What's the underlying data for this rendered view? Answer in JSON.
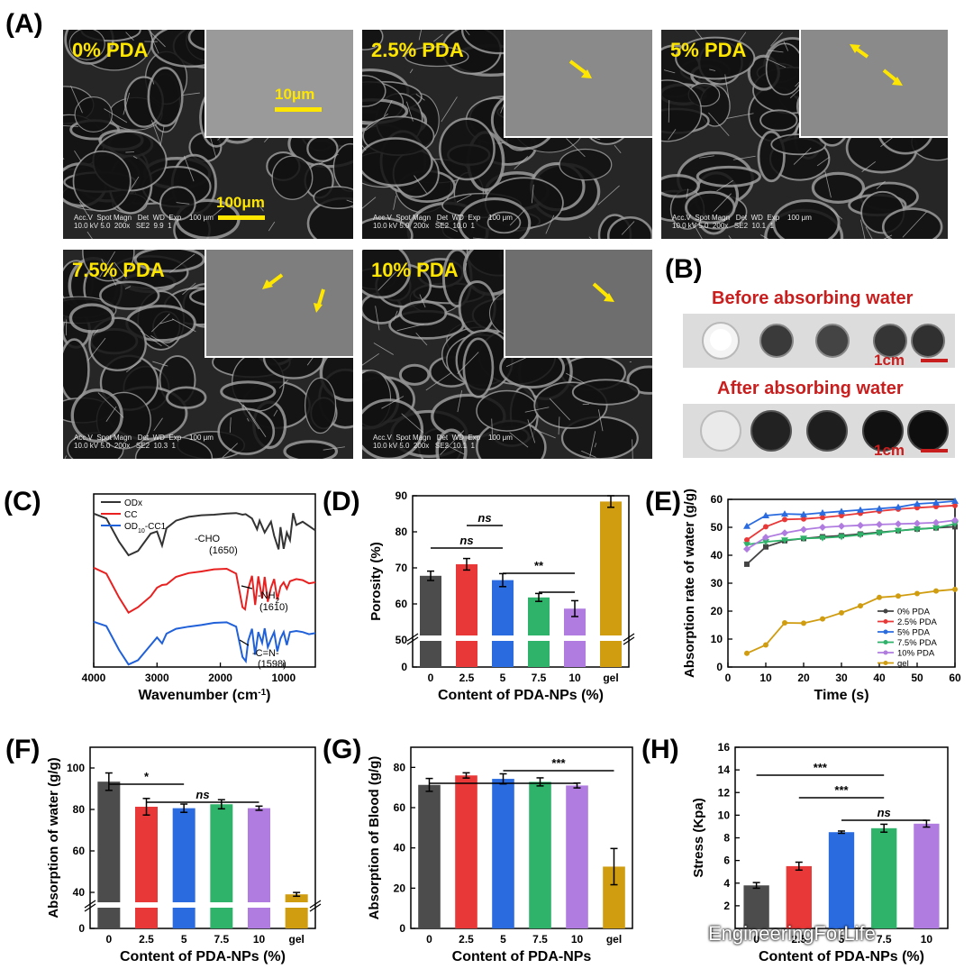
{
  "panel_labels": {
    "A": "(A)",
    "B": "(B)",
    "C": "(C)",
    "D": "(D)",
    "E": "(E)",
    "F": "(F)",
    "G": "(G)",
    "H": "(H)"
  },
  "sem_panels": [
    {
      "title": "0% PDA",
      "inset_scale": "10μm",
      "main_scale": "100μm",
      "meta": "Acc.V  Spot Magn   Det  WD  Exp    100 μm\n10.0 kV 5.0  200x   SE2  9.9  1",
      "inset_arrows": 0
    },
    {
      "title": "2.5% PDA",
      "meta": "Acc.V  Spot Magn   Det  WD  Exp    100 μm\n10.0 kV 5.0  200x   SE2  10.0  1",
      "inset_arrows": 1
    },
    {
      "title": "5% PDA",
      "meta": "Acc.V  Spot Magn   Det  WD  Exp    100 μm\n10.0 kV 5.0  200x   SE2  10.1  1",
      "inset_arrows": 2
    },
    {
      "title": "7.5% PDA",
      "meta": "Acc.V  Spot Magn   Det  WD  Exp    100 μm\n10.0 kV 5.0  200x   SE2  10.3  1",
      "inset_arrows": 2
    },
    {
      "title": "10% PDA",
      "meta": "Acc.V  Spot Magn   Det  WD  Exp    100 μm\n10.0 kV 5.0  200x   SE2  10.1  1",
      "inset_arrows": 1
    }
  ],
  "panel_b": {
    "before": "Before absorbing water",
    "after": "After absorbing water",
    "scale": "1cm",
    "colors": {
      "text": "#c81e1e"
    }
  },
  "watermark": "EngineeringForLife",
  "chart_data": [
    {
      "id": "C",
      "type": "line",
      "xlabel": "Wavenumber (cm",
      "xlabel_sup": "-1",
      "xlabel_end": ")",
      "xticks": [
        "4000",
        "3000",
        "2000",
        "1000"
      ],
      "xlim": [
        4000,
        500
      ],
      "legend": [
        {
          "name": "ODx",
          "color": "#333333"
        },
        {
          "name": "CC",
          "color": "#e82020"
        },
        {
          "name": "OD",
          "sub": "10",
          "name2": "-CC1",
          "color": "#2060d8"
        }
      ],
      "annotations": [
        {
          "text": "-CHO",
          "value": "(1650)"
        },
        {
          "text": "-NH",
          "sub": "2",
          "value": "(1610)"
        },
        {
          "text": "-C=N-",
          "value": "(1598)"
        }
      ],
      "series": [
        {
          "name": "ODx",
          "color": "#333333",
          "x": [
            4000,
            3800,
            3600,
            3450,
            3300,
            3100,
            3000,
            2920,
            2850,
            2700,
            2500,
            2300,
            2100,
            1900,
            1750,
            1650,
            1600,
            1500,
            1420,
            1380,
            1300,
            1200,
            1150,
            1080,
            1050,
            1000,
            950,
            900,
            850,
            800,
            700,
            600,
            500
          ],
          "y": [
            0.3,
            1.2,
            5.5,
            8.0,
            7.2,
            4.0,
            3.6,
            6.2,
            3.0,
            1.6,
            0.9,
            0.6,
            0.5,
            0.3,
            0.2,
            0.5,
            0.4,
            1.2,
            3.2,
            1.6,
            3.8,
            1.8,
            4.4,
            6.9,
            2.8,
            6.8,
            3.8,
            5.2,
            0.2,
            2.4,
            1.8,
            2.6,
            3.4
          ]
        },
        {
          "name": "CC",
          "color": "#e82020",
          "x": [
            4000,
            3800,
            3600,
            3450,
            3300,
            3100,
            3000,
            2920,
            2850,
            2700,
            2500,
            2300,
            2100,
            1900,
            1750,
            1650,
            1610,
            1560,
            1500,
            1450,
            1400,
            1340,
            1300,
            1250,
            1200,
            1150,
            1100,
            1050,
            1000,
            950,
            900,
            800,
            700,
            600,
            500
          ],
          "y": [
            0.3,
            1.4,
            5.8,
            8.6,
            7.6,
            5.6,
            4.0,
            3.5,
            3.4,
            2.0,
            1.3,
            1.0,
            0.6,
            0.5,
            1.4,
            7.6,
            8.0,
            4.2,
            1.8,
            7.2,
            1.9,
            6.0,
            2.0,
            6.6,
            4.0,
            2.4,
            6.2,
            3.8,
            3.0,
            4.2,
            2.8,
            2.4,
            2.6,
            3.2,
            3.0
          ]
        },
        {
          "name": "OD10-CC1",
          "color": "#2060d8",
          "x": [
            4000,
            3800,
            3600,
            3450,
            3300,
            3100,
            3000,
            2920,
            2850,
            2700,
            2500,
            2300,
            2100,
            1900,
            1750,
            1650,
            1598,
            1560,
            1500,
            1450,
            1400,
            1340,
            1300,
            1250,
            1200,
            1150,
            1100,
            1050,
            1000,
            950,
            900,
            800,
            700,
            600,
            500
          ],
          "y": [
            0.3,
            1.1,
            5.5,
            8.2,
            7.4,
            4.6,
            3.2,
            4.3,
            2.5,
            1.6,
            1.2,
            0.9,
            0.5,
            0.4,
            1.2,
            6.8,
            7.6,
            3.8,
            1.6,
            6.4,
            2.2,
            4.2,
            1.5,
            5.0,
            3.5,
            2.2,
            5.8,
            3.4,
            2.2,
            4.6,
            2.2,
            2.0,
            2.2,
            2.6,
            2.4
          ]
        }
      ]
    },
    {
      "id": "D",
      "type": "bar",
      "ylabel": "Porosity (%)",
      "xlabel": "Content of PDA-NPs (%)",
      "categories": [
        "0",
        "2.5",
        "5",
        "7.5",
        "10",
        "gel"
      ],
      "values": [
        67.8,
        71.0,
        66.6,
        61.8,
        58.7,
        88.4
      ],
      "errors": [
        1.3,
        1.6,
        1.8,
        1.1,
        2.2,
        1.6
      ],
      "ylim": [
        0,
        90
      ],
      "yticks": [
        "0",
        "50",
        "60",
        "70",
        "80",
        "90"
      ],
      "axis_break": true,
      "colors": [
        "#4c4c4c",
        "#e83838",
        "#2a6be0",
        "#2fb36a",
        "#b07ce0",
        "#d09c10"
      ],
      "significance": [
        {
          "from": 0,
          "to": 2,
          "label": "ns",
          "italic": true
        },
        {
          "from": 1,
          "to": 2,
          "label": "ns",
          "italic": true
        },
        {
          "from": 2,
          "to": 4,
          "label": "**",
          "italic": false
        },
        {
          "from": 3,
          "to": 4,
          "label": "",
          "italic": false
        }
      ]
    },
    {
      "id": "E",
      "type": "line",
      "ylabel": "Absorption rate of water (g/g)",
      "xlabel": "Time (s)",
      "xlim": [
        0,
        60
      ],
      "ylim": [
        0,
        60
      ],
      "xticks": [
        "0",
        "10",
        "20",
        "30",
        "40",
        "50",
        "60"
      ],
      "yticks": [
        "0",
        "10",
        "20",
        "30",
        "40",
        "50",
        "60"
      ],
      "x": [
        5,
        10,
        15,
        20,
        25,
        30,
        35,
        40,
        45,
        50,
        55,
        60
      ],
      "series": [
        {
          "name": "0% PDA",
          "color": "#444444",
          "marker": "square",
          "values": [
            36.8,
            43.0,
            45.2,
            46.0,
            46.6,
            47.0,
            47.6,
            48.2,
            48.8,
            49.4,
            49.8,
            50.2
          ]
        },
        {
          "name": "2.5% PDA",
          "color": "#e83838",
          "marker": "circle",
          "values": [
            45.5,
            50.2,
            52.8,
            53.0,
            53.5,
            54.2,
            55.0,
            55.8,
            56.5,
            57.0,
            57.4,
            57.8
          ]
        },
        {
          "name": "5% PDA",
          "color": "#2a6be0",
          "marker": "triangle",
          "values": [
            50.4,
            54.2,
            54.8,
            54.6,
            55.2,
            55.7,
            56.2,
            56.7,
            57.2,
            58.4,
            58.8,
            59.4
          ]
        },
        {
          "name": "7.5% PDA",
          "color": "#2fb36a",
          "marker": "triangle-down",
          "values": [
            43.8,
            44.8,
            45.4,
            46.0,
            46.2,
            46.6,
            47.3,
            48.0,
            48.8,
            49.3,
            49.8,
            51.2
          ]
        },
        {
          "name": "10% PDA",
          "color": "#b07ce0",
          "marker": "diamond",
          "values": [
            42.2,
            46.4,
            48.0,
            49.2,
            50.0,
            50.4,
            50.7,
            51.0,
            51.2,
            51.4,
            51.7,
            52.5
          ]
        },
        {
          "name": "gel",
          "color": "#d09c10",
          "marker": "circle",
          "values": [
            4.9,
            7.9,
            15.8,
            15.7,
            17.2,
            19.4,
            21.9,
            24.9,
            25.4,
            26.3,
            27.2,
            27.8
          ]
        }
      ]
    },
    {
      "id": "F",
      "type": "bar",
      "ylabel": "Absorption of water (g/g)",
      "xlabel": "Content of PDA-NPs (%)",
      "categories": [
        "0",
        "2.5",
        "5",
        "7.5",
        "10",
        "gel"
      ],
      "values": [
        93.4,
        81.3,
        80.6,
        82.5,
        80.6,
        37.8
      ],
      "errors": [
        4.2,
        4.0,
        2.0,
        2.2,
        1.0,
        2.1
      ],
      "ylim": [
        0,
        110
      ],
      "yticks": [
        "0",
        "40",
        "60",
        "80",
        "100"
      ],
      "axis_break": true,
      "colors": [
        "#4c4c4c",
        "#e83838",
        "#2a6be0",
        "#2fb36a",
        "#b07ce0",
        "#d09c10"
      ],
      "significance": [
        {
          "from": 0,
          "to": 2,
          "label": "*",
          "italic": false
        },
        {
          "from": 1,
          "to": 4,
          "label": "ns",
          "italic": true
        }
      ]
    },
    {
      "id": "G",
      "type": "bar",
      "ylabel": "Absorption of Blood (g/g)",
      "xlabel": "Content of PDA-NPs",
      "categories": [
        "0",
        "2.5",
        "5",
        "7.5",
        "10",
        "gel"
      ],
      "values": [
        71.3,
        76.0,
        74.3,
        72.8,
        71.0,
        30.7
      ],
      "errors": [
        3.2,
        1.3,
        2.5,
        2.0,
        1.2,
        9.0
      ],
      "ylim": [
        0,
        90
      ],
      "yticks": [
        "0",
        "20",
        "40",
        "60",
        "80"
      ],
      "axis_break": false,
      "colors": [
        "#4c4c4c",
        "#e83838",
        "#2a6be0",
        "#2fb36a",
        "#b07ce0",
        "#d09c10"
      ],
      "significance": [
        {
          "from": 0,
          "to": 4,
          "label": "",
          "italic": false
        },
        {
          "from": 2,
          "to": 5,
          "label": "***",
          "italic": false
        }
      ]
    },
    {
      "id": "H",
      "type": "bar",
      "ylabel": "Stress (Kpa)",
      "xlabel": "Content of PDA-NPs (%)",
      "categories": [
        "0",
        "2.5",
        "5",
        "7.5",
        "10"
      ],
      "values": [
        3.8,
        5.5,
        8.5,
        8.85,
        9.25
      ],
      "errors": [
        0.25,
        0.35,
        0.1,
        0.35,
        0.3
      ],
      "ylim": [
        0,
        16
      ],
      "yticks": [
        "2",
        "4",
        "6",
        "8",
        "10",
        "12",
        "14",
        "16"
      ],
      "axis_break": false,
      "colors": [
        "#4c4c4c",
        "#e83838",
        "#2a6be0",
        "#2fb36a",
        "#b07ce0"
      ],
      "significance": [
        {
          "from": 0,
          "to": 3,
          "label": "***",
          "italic": false
        },
        {
          "from": 1,
          "to": 3,
          "label": "***",
          "italic": false
        },
        {
          "from": 2,
          "to": 4,
          "label": "ns",
          "italic": true
        }
      ]
    }
  ]
}
